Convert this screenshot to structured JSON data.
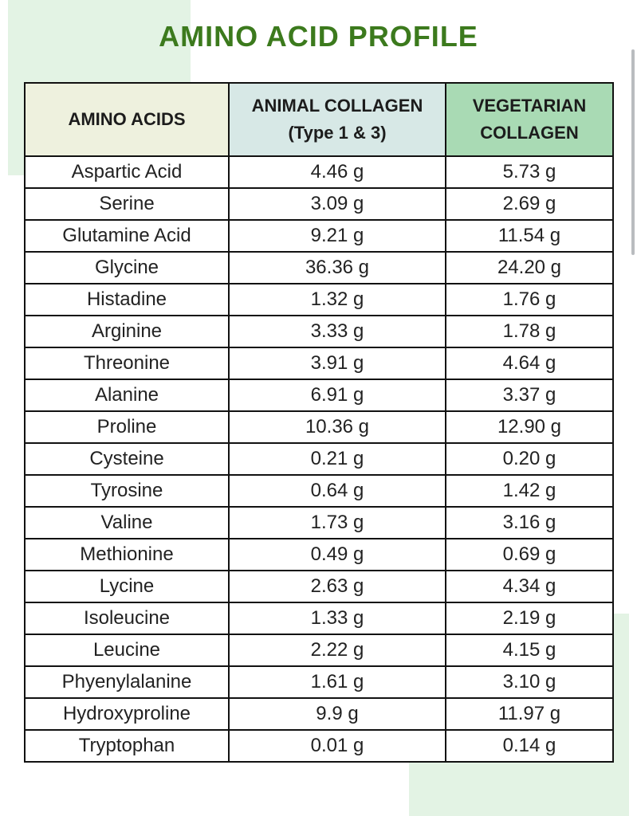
{
  "title": "AMINO ACID PROFILE",
  "colors": {
    "title": "#3c7a1d",
    "header_amino": "#eef1de",
    "header_animal": "#d7e8e6",
    "header_vegetarian": "#a9dab4",
    "background_accent": "#e3f3e4"
  },
  "table": {
    "headers": {
      "amino_acids": "AMINO ACIDS",
      "animal_line1": "ANIMAL COLLAGEN",
      "animal_line2": "(Type 1 & 3)",
      "vegetarian_line1": "VEGETARIAN",
      "vegetarian_line2": "COLLAGEN"
    },
    "rows": [
      {
        "acid": "Aspartic Acid",
        "animal": "4.46 g",
        "vegetarian": "5.73 g"
      },
      {
        "acid": "Serine",
        "animal": "3.09 g",
        "vegetarian": "2.69 g"
      },
      {
        "acid": "Glutamine Acid",
        "animal": "9.21 g",
        "vegetarian": "11.54 g"
      },
      {
        "acid": "Glycine",
        "animal": "36.36 g",
        "vegetarian": "24.20 g"
      },
      {
        "acid": "Histadine",
        "animal": "1.32 g",
        "vegetarian": "1.76 g"
      },
      {
        "acid": "Arginine",
        "animal": "3.33 g",
        "vegetarian": "1.78 g"
      },
      {
        "acid": "Threonine",
        "animal": "3.91 g",
        "vegetarian": "4.64 g"
      },
      {
        "acid": "Alanine",
        "animal": "6.91 g",
        "vegetarian": "3.37 g"
      },
      {
        "acid": "Proline",
        "animal": "10.36 g",
        "vegetarian": "12.90 g"
      },
      {
        "acid": "Cysteine",
        "animal": "0.21 g",
        "vegetarian": "0.20 g"
      },
      {
        "acid": "Tyrosine",
        "animal": "0.64 g",
        "vegetarian": "1.42 g"
      },
      {
        "acid": "Valine",
        "animal": "1.73 g",
        "vegetarian": "3.16 g"
      },
      {
        "acid": "Methionine",
        "animal": "0.49 g",
        "vegetarian": "0.69 g"
      },
      {
        "acid": "Lycine",
        "animal": "2.63 g",
        "vegetarian": "4.34 g"
      },
      {
        "acid": "Isoleucine",
        "animal": "1.33 g",
        "vegetarian": "2.19 g"
      },
      {
        "acid": "Leucine",
        "animal": "2.22 g",
        "vegetarian": "4.15 g"
      },
      {
        "acid": "Phyenylalanine",
        "animal": "1.61 g",
        "vegetarian": "3.10 g"
      },
      {
        "acid": "Hydroxyproline",
        "animal": "9.9 g",
        "vegetarian": "11.97 g"
      },
      {
        "acid": "Tryptophan",
        "animal": "0.01 g",
        "vegetarian": "0.14 g"
      }
    ]
  }
}
